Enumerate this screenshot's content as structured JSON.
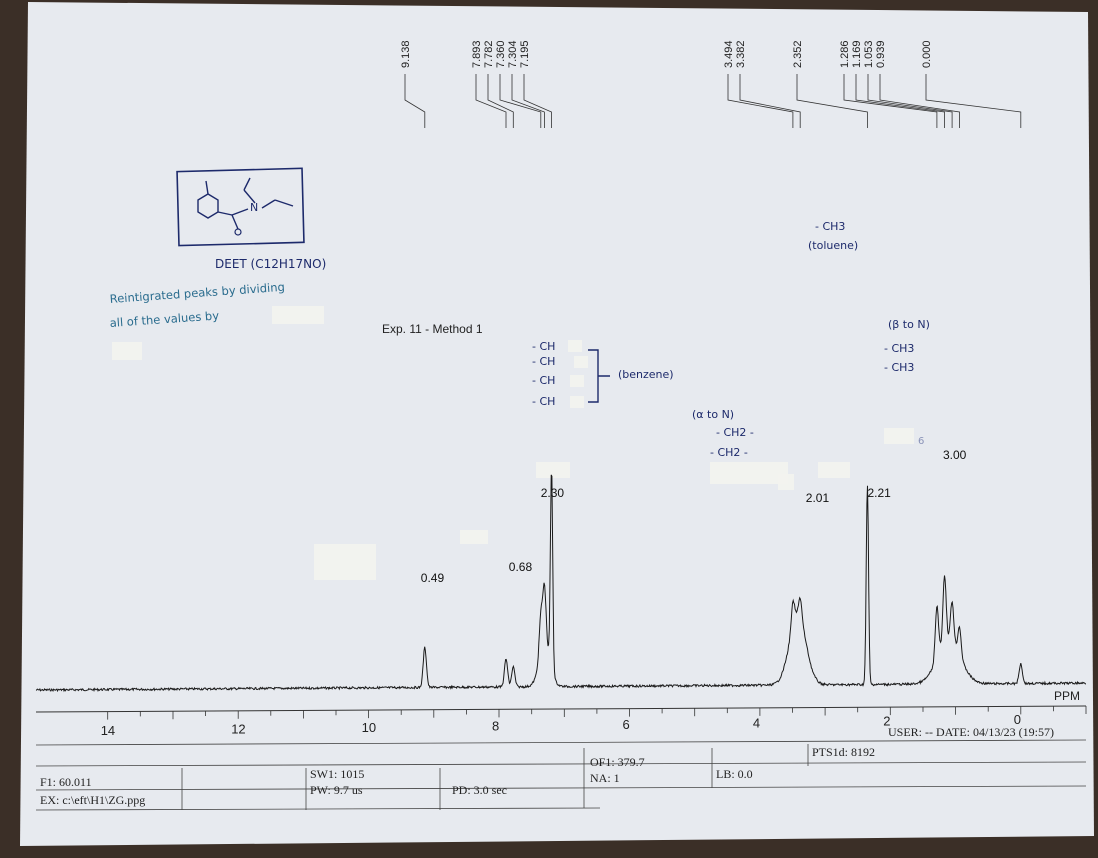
{
  "header": {
    "title": "Exp. 11 - Method 1"
  },
  "annotations": {
    "compound": "DEET (C12H17NO)",
    "note_line1": "Reintigrated peaks by dividing",
    "note_line2": "all of the values by",
    "benzene_ch": [
      "- CH",
      "- CH",
      "- CH",
      "- CH"
    ],
    "benzene_label": "(benzene)",
    "alpha_label": "(α to N)",
    "alpha_ch2": [
      "- CH2 -",
      "- CH2 -"
    ],
    "toluene_ch3": "- CH3",
    "toluene_label": "(toluene)",
    "beta_label": "(β to N)",
    "beta_ch3": [
      "- CH3",
      "- CH3"
    ],
    "handwritten_six": "6"
  },
  "chart_data": {
    "type": "line",
    "title": "Exp. 11 - Method 1",
    "xlabel": "PPM",
    "ylabel": "",
    "xlim": [
      15.1,
      -1.0
    ],
    "x_reversed": true,
    "ticks": [
      14,
      12,
      10,
      8,
      6,
      4,
      2,
      0
    ],
    "peak_labels": [
      "9.138",
      "7.893",
      "7.782",
      "7.360",
      "7.304",
      "7.195",
      "3.494",
      "3.382",
      "2.352",
      "1.286",
      "1.169",
      "1.053",
      "0.939",
      "0.000"
    ],
    "peaks": [
      {
        "ppm": 9.138,
        "height": 0.2
      },
      {
        "ppm": 7.893,
        "height": 0.14
      },
      {
        "ppm": 7.782,
        "height": 0.1
      },
      {
        "ppm": 7.36,
        "height": 0.2
      },
      {
        "ppm": 7.304,
        "height": 0.3
      },
      {
        "ppm": 7.195,
        "height": 1.0
      },
      {
        "ppm": 3.494,
        "height": 0.12
      },
      {
        "ppm": 3.382,
        "height": 0.1
      },
      {
        "ppm": 2.352,
        "height": 1.0
      },
      {
        "ppm": 1.286,
        "height": 0.26
      },
      {
        "ppm": 1.169,
        "height": 0.34
      },
      {
        "ppm": 1.053,
        "height": 0.2
      },
      {
        "ppm": 0.939,
        "height": 0.14
      },
      {
        "ppm": 0.0,
        "height": 0.1
      }
    ],
    "integrals": [
      {
        "ppm": 9.138,
        "value": "0.49"
      },
      {
        "ppm": 7.85,
        "value": "0.68"
      },
      {
        "ppm": 7.3,
        "value": "2.30"
      },
      {
        "ppm": 3.45,
        "value": "2.01"
      },
      {
        "ppm": 2.35,
        "value": "2.21"
      },
      {
        "ppm": 1.1,
        "value": "3.00"
      }
    ]
  },
  "footer": {
    "user_date": "USER: -- DATE: 04/13/23  (19:57)",
    "pts": "PTS1d: 8192",
    "f1": "F1: 60.011",
    "ex": "EX: c:\\eft\\H1\\ZG.ppg",
    "sw1": "SW1: 1015",
    "pw": "PW: 9.7  us",
    "pd": "PD: 3.0   sec",
    "of1": "OF1: 379.7",
    "na": "NA: 1",
    "lb": "LB: 0.0"
  }
}
